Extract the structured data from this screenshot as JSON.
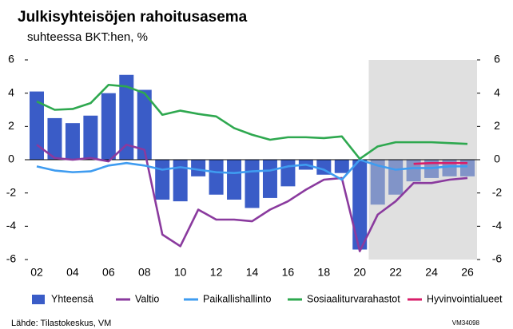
{
  "chart_data": {
    "type": "bar_line",
    "title": "Julkisyhteisöjen rahoitusasema",
    "subtitle": "suhteessa BKT:hen, %",
    "source": "Lähde: Tilastokeskus, VM",
    "code": "VM34098",
    "categories": [
      "02",
      null,
      "04",
      null,
      "06",
      null,
      "08",
      null,
      "10",
      null,
      "12",
      null,
      "14",
      null,
      "16",
      null,
      "18",
      null,
      "20",
      null,
      "22",
      null,
      "24",
      null,
      "26"
    ],
    "ylim": [
      -6,
      6
    ],
    "yticks": [
      -6,
      -4,
      -2,
      0,
      2,
      4,
      6
    ],
    "y2lim": [
      -6,
      6
    ],
    "y2ticks": [
      -6,
      -4,
      -2,
      0,
      2,
      4,
      6
    ],
    "shade_from_index": 19,
    "shade_color": "#e0e0e0",
    "series": [
      {
        "name": "Yhteensä",
        "kind": "bar",
        "color": "#3a5cc7",
        "colors": [
          "#3a5cc7",
          "#3a5cc7",
          "#3a5cc7",
          "#3a5cc7",
          "#3a5cc7",
          "#3a5cc7",
          "#3a5cc7",
          "#3a5cc7",
          "#3a5cc7",
          "#3a5cc7",
          "#3a5cc7",
          "#3a5cc7",
          "#3a5cc7",
          "#3a5cc7",
          "#3a5cc7",
          "#3a5cc7",
          "#3a5cc7",
          "#3a5cc7",
          "#3a5cc7",
          "#8194c8",
          "#8194c8",
          "#8194c8",
          "#8194c8",
          "#8194c8",
          "#8194c8"
        ],
        "values": [
          4.1,
          2.5,
          2.2,
          2.65,
          4.0,
          5.1,
          4.2,
          -2.4,
          -2.5,
          -1.0,
          -2.1,
          -2.4,
          -2.9,
          -2.3,
          -1.6,
          -0.6,
          -0.9,
          -0.8,
          -5.4,
          -2.7,
          -2.1,
          -1.3,
          -1.1,
          -1.0,
          -1.0
        ]
      },
      {
        "name": "Valtio",
        "kind": "line",
        "color": "#8a3a9e",
        "values": [
          0.9,
          0.1,
          0.0,
          0.1,
          -0.1,
          0.9,
          0.6,
          -4.5,
          -5.2,
          -3.0,
          -3.6,
          -3.6,
          -3.7,
          -3.0,
          -2.5,
          -1.8,
          -1.2,
          -1.1,
          -5.5,
          -3.3,
          -2.5,
          -1.4,
          -1.4,
          -1.2,
          -1.1
        ]
      },
      {
        "name": "Paikallishallinto",
        "kind": "line",
        "color": "#3f9cf0",
        "values": [
          -0.4,
          -0.65,
          -0.75,
          -0.7,
          -0.35,
          -0.2,
          -0.35,
          -0.6,
          -0.45,
          -0.6,
          -0.75,
          -0.8,
          -0.7,
          -0.65,
          -0.4,
          -0.3,
          -0.6,
          -1.2,
          0.0,
          -0.35,
          -0.6,
          -0.5,
          -0.5,
          -0.4,
          -0.4
        ]
      },
      {
        "name": "Sosiaaliturvarahastot",
        "kind": "line",
        "color": "#2ea84f",
        "values": [
          3.5,
          3.0,
          3.05,
          3.4,
          4.5,
          4.4,
          4.0,
          2.7,
          2.95,
          2.75,
          2.6,
          1.9,
          1.5,
          1.2,
          1.35,
          1.35,
          1.3,
          1.4,
          0.05,
          0.8,
          1.05,
          1.05,
          1.05,
          1.0,
          0.95
        ]
      },
      {
        "name": "Hyvinvointialueet",
        "kind": "line",
        "color": "#d81e6a",
        "values": [
          null,
          null,
          null,
          null,
          null,
          null,
          null,
          null,
          null,
          null,
          null,
          null,
          null,
          null,
          null,
          null,
          null,
          null,
          null,
          null,
          null,
          -0.25,
          -0.2,
          -0.2,
          -0.2
        ]
      }
    ]
  }
}
